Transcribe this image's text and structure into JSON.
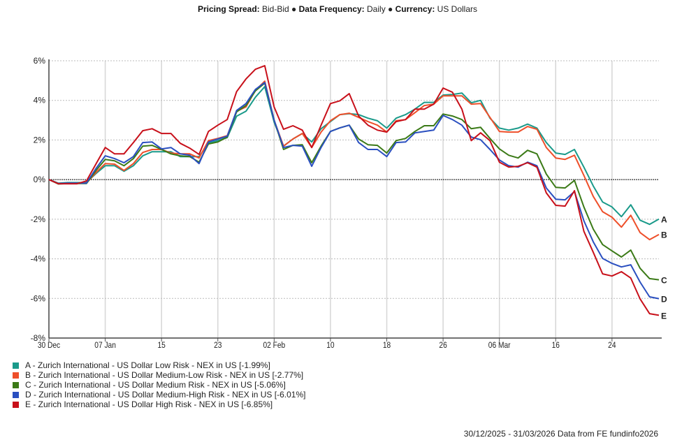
{
  "header": {
    "pricing_label": "Pricing Spread:",
    "pricing_value": "Bid-Bid",
    "bullet": "●",
    "frequency_label": "Data Frequency:",
    "frequency_value": "Daily",
    "currency_label": "Currency:",
    "currency_value": "US Dollars"
  },
  "chart_data": {
    "type": "line",
    "title": "",
    "xlabel": "",
    "ylabel": "",
    "ylim": [
      -8,
      6
    ],
    "yticks": [
      6,
      4,
      2,
      0,
      -2,
      -4,
      -6,
      -8
    ],
    "ytick_labels": [
      "6%",
      "4%",
      "2%",
      "0%",
      "-2%",
      "-4%",
      "-6%",
      "-8%"
    ],
    "x_count": 66,
    "xticks": [
      {
        "index": 0,
        "label": "30 Dec"
      },
      {
        "index": 6,
        "label": "07 Jan"
      },
      {
        "index": 12,
        "label": "15"
      },
      {
        "index": 18,
        "label": "23"
      },
      {
        "index": 24,
        "label": "02 Feb"
      },
      {
        "index": 30,
        "label": "10"
      },
      {
        "index": 36,
        "label": "18"
      },
      {
        "index": 42,
        "label": "26"
      },
      {
        "index": 48,
        "label": "06 Mar"
      },
      {
        "index": 54,
        "label": "16"
      },
      {
        "index": 60,
        "label": "24"
      }
    ],
    "grid": true,
    "legend_placement": "bottom-left",
    "series": [
      {
        "key": "A",
        "name": "A - Zurich International - US Dollar Low Risk - NEX in US [-1.99%]",
        "color": "#1a9a8a",
        "values": [
          0,
          -0.18,
          -0.15,
          -0.15,
          -0.15,
          0.3,
          0.7,
          0.7,
          0.42,
          0.7,
          1.2,
          1.41,
          1.41,
          1.41,
          1.16,
          1.16,
          1.16,
          1.83,
          1.97,
          2.12,
          3.2,
          3.45,
          4.16,
          4.69,
          2.9,
          1.69,
          2.05,
          2.33,
          1.9,
          2.57,
          2.93,
          3.28,
          3.33,
          3.28,
          3.1,
          2.97,
          2.6,
          3.1,
          3.28,
          3.56,
          3.9,
          3.9,
          4.27,
          4.3,
          4.37,
          3.88,
          4.0,
          3.1,
          2.6,
          2.5,
          2.6,
          2.8,
          2.6,
          1.87,
          1.34,
          1.27,
          1.52,
          0.63,
          -0.32,
          -1.13,
          -1.38,
          -1.87,
          -1.27,
          -2.05,
          -2.26,
          -1.99
        ]
      },
      {
        "key": "B",
        "name": "B - Zurich International - US Dollar Medium-Low Risk - NEX in US [-2.77%]",
        "color": "#ee4f2a",
        "values": [
          0,
          -0.2,
          -0.18,
          -0.18,
          -0.18,
          0.35,
          0.81,
          0.78,
          0.46,
          0.81,
          1.37,
          1.52,
          1.52,
          1.34,
          1.3,
          1.3,
          1.09,
          1.97,
          2.08,
          2.22,
          3.45,
          3.67,
          4.51,
          4.97,
          3.0,
          1.69,
          2.05,
          2.33,
          1.62,
          2.4,
          2.97,
          3.28,
          3.35,
          3.14,
          2.93,
          2.75,
          2.4,
          2.97,
          3.03,
          3.38,
          3.74,
          3.81,
          4.23,
          4.23,
          4.23,
          3.81,
          3.84,
          3.14,
          2.43,
          2.4,
          2.4,
          2.68,
          2.54,
          1.62,
          1.09,
          1.02,
          1.23,
          0.21,
          -0.85,
          -1.62,
          -1.9,
          -2.4,
          -1.8,
          -2.68,
          -3.03,
          -2.77
        ]
      },
      {
        "key": "C",
        "name": "C - Zurich International - US Dollar Medium Risk - NEX in US [-5.06%]",
        "color": "#3b7a17",
        "values": [
          0,
          -0.22,
          -0.2,
          -0.2,
          -0.2,
          0.45,
          1.02,
          0.95,
          0.7,
          1.06,
          1.69,
          1.73,
          1.52,
          1.3,
          1.2,
          1.16,
          0.88,
          1.8,
          1.9,
          2.15,
          3.42,
          3.74,
          4.48,
          4.87,
          3.0,
          1.52,
          1.73,
          1.76,
          0.85,
          1.69,
          2.43,
          2.61,
          2.75,
          2.05,
          1.76,
          1.73,
          1.34,
          1.97,
          2.08,
          2.43,
          2.72,
          2.72,
          3.31,
          3.21,
          3.03,
          2.57,
          2.64,
          2.08,
          1.55,
          1.23,
          1.09,
          1.48,
          1.3,
          0.28,
          -0.39,
          -0.42,
          -0.04,
          -1.38,
          -2.5,
          -3.28,
          -3.6,
          -3.91,
          -3.56,
          -4.48,
          -5.0,
          -5.06
        ]
      },
      {
        "key": "D",
        "name": "D - Zurich International - US Dollar Medium-High Risk - NEX in US [-6.01%]",
        "color": "#2a4fc0",
        "values": [
          0,
          -0.2,
          -0.18,
          -0.18,
          -0.18,
          0.55,
          1.2,
          1.06,
          0.85,
          1.16,
          1.87,
          1.9,
          1.55,
          1.62,
          1.3,
          1.23,
          0.81,
          1.9,
          2.05,
          2.19,
          3.49,
          3.84,
          4.55,
          4.9,
          3.0,
          1.62,
          1.73,
          1.69,
          0.67,
          1.62,
          2.43,
          2.61,
          2.75,
          1.87,
          1.52,
          1.52,
          1.16,
          1.87,
          1.9,
          2.36,
          2.43,
          2.5,
          3.24,
          3.03,
          2.75,
          2.15,
          2.01,
          1.52,
          0.99,
          0.7,
          0.63,
          0.88,
          0.7,
          -0.42,
          -0.99,
          -1.02,
          -0.6,
          -2.08,
          -3.14,
          -3.98,
          -4.23,
          -4.41,
          -4.3,
          -5.18,
          -5.92,
          -6.01
        ]
      },
      {
        "key": "E",
        "name": "E - Zurich International - US Dollar High Risk - NEX in US [-6.85%]",
        "color": "#c8101a",
        "values": [
          0,
          -0.21,
          -0.21,
          -0.21,
          -0.07,
          0.78,
          1.62,
          1.3,
          1.3,
          1.87,
          2.47,
          2.57,
          2.33,
          2.33,
          1.83,
          1.59,
          1.27,
          2.43,
          2.75,
          3.03,
          4.44,
          5.08,
          5.57,
          5.75,
          3.67,
          2.54,
          2.72,
          2.5,
          1.62,
          2.75,
          3.84,
          3.98,
          4.34,
          3.21,
          2.75,
          2.5,
          2.4,
          2.93,
          3.03,
          3.56,
          3.56,
          3.81,
          4.62,
          4.41,
          3.56,
          1.97,
          2.36,
          1.97,
          0.88,
          0.63,
          0.67,
          0.85,
          0.63,
          -0.67,
          -1.3,
          -1.34,
          -0.56,
          -2.61,
          -3.67,
          -4.76,
          -4.87,
          -4.65,
          -4.97,
          -6.03,
          -6.77,
          -6.85
        ]
      }
    ]
  },
  "footer": {
    "text": "30/12/2025 - 31/03/2026 Data from FE fundinfo2026"
  }
}
